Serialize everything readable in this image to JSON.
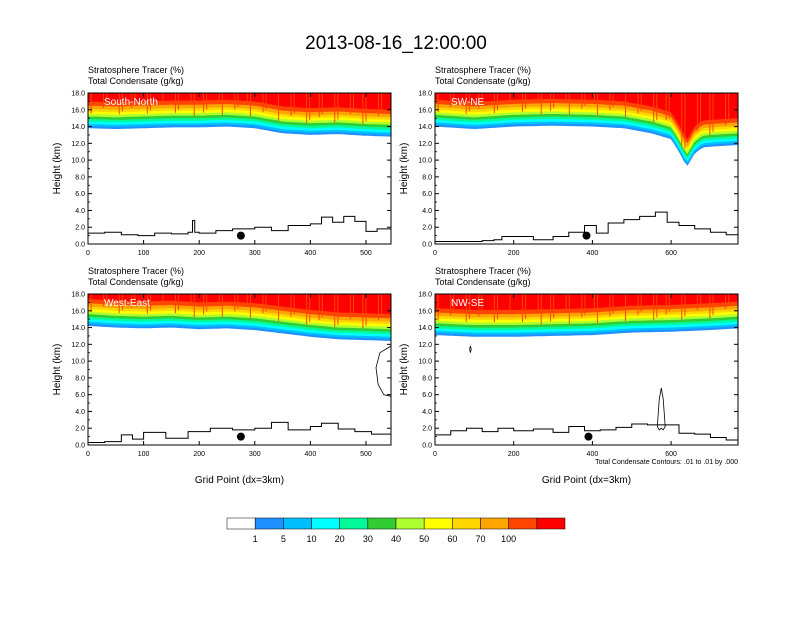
{
  "figure_title": "2013-08-16_12:00:00",
  "colors": {
    "levels": [
      "#ffffff",
      "#1e90ff",
      "#00bfff",
      "#00ffff",
      "#00fa9a",
      "#32cd32",
      "#adff2f",
      "#ffff00",
      "#ffd700",
      "#ffa500",
      "#ff4500",
      "#ff0000"
    ]
  },
  "colorbar": {
    "labels": [
      "1",
      "5",
      "10",
      "20",
      "30",
      "40",
      "50",
      "60",
      "70",
      "100"
    ]
  },
  "contour_note": "Total Condensate Contours: .01 to .01 by .000",
  "chart_data": [
    {
      "type": "heatmap",
      "panel_label": "South-North",
      "title": "Stratosphere Tracer   (%)",
      "subtitle": "Total Condensate   (g/kg)",
      "ylabel": "Height (km)",
      "xlabel": "",
      "xlim": [
        0,
        545
      ],
      "ylim": [
        0,
        18
      ],
      "x_ticks": [
        "0",
        "100",
        "200",
        "300",
        "400",
        "500"
      ],
      "x_tick_values": [
        0,
        100,
        200,
        300,
        400,
        500
      ],
      "y_ticks": [
        "0.0",
        "2.0",
        "4.0",
        "6.0",
        "8.0",
        "10.0",
        "12.0",
        "14.0",
        "16.0",
        "18.0"
      ],
      "tropopause_km": {
        "x": [
          0,
          50,
          100,
          150,
          200,
          250,
          300,
          350,
          400,
          450,
          500,
          545
        ],
        "y": [
          13.8,
          13.7,
          13.8,
          13.9,
          13.9,
          14.0,
          13.8,
          13.2,
          13.0,
          13.1,
          12.9,
          12.8
        ]
      },
      "terrain_km": {
        "x": [
          0,
          30,
          60,
          90,
          120,
          150,
          180,
          188,
          192,
          200,
          230,
          260,
          300,
          330,
          360,
          400,
          420,
          440,
          460,
          480,
          500,
          520,
          545
        ],
        "y": [
          1.3,
          1.4,
          1.1,
          1.0,
          1.3,
          1.2,
          1.4,
          2.8,
          1.4,
          1.3,
          1.6,
          1.8,
          2.0,
          1.6,
          2.2,
          2.4,
          3.2,
          2.6,
          3.3,
          2.7,
          1.5,
          1.8,
          1.8
        ]
      },
      "marker": {
        "x": 275,
        "y": 1.0
      },
      "contours": []
    },
    {
      "type": "heatmap",
      "panel_label": "SW-NE",
      "title": "Stratosphere Tracer   (%)",
      "subtitle": "Total Condensate   (g/kg)",
      "ylabel": "Height (km)",
      "xlabel": "",
      "xlim": [
        0,
        770
      ],
      "ylim": [
        0,
        18
      ],
      "x_ticks": [
        "0",
        "200",
        "400",
        "600"
      ],
      "x_tick_values": [
        0,
        200,
        400,
        600
      ],
      "y_ticks": [
        "0.0",
        "2.0",
        "4.0",
        "6.0",
        "8.0",
        "10.0",
        "12.0",
        "14.0",
        "16.0",
        "18.0"
      ],
      "tropopause_km": {
        "x": [
          0,
          100,
          200,
          300,
          400,
          480,
          550,
          600,
          620,
          640,
          660,
          680,
          700,
          770
        ],
        "y": [
          14.0,
          13.7,
          14.0,
          14.1,
          14.0,
          13.8,
          13.2,
          12.5,
          11.0,
          9.2,
          10.8,
          11.5,
          11.6,
          11.8
        ]
      },
      "terrain_km": {
        "x": [
          0,
          60,
          120,
          150,
          170,
          250,
          300,
          340,
          380,
          410,
          440,
          480,
          520,
          560,
          590,
          620,
          660,
          700,
          740,
          770
        ],
        "y": [
          0.3,
          0.3,
          0.4,
          0.5,
          0.9,
          0.5,
          0.9,
          1.4,
          2.2,
          1.3,
          2.5,
          2.9,
          3.3,
          3.8,
          2.6,
          2.2,
          1.8,
          1.4,
          1.1,
          1.0
        ]
      },
      "marker": {
        "x": 385,
        "y": 1.0
      },
      "contours": []
    },
    {
      "type": "heatmap",
      "panel_label": "West-East",
      "title": "Stratosphere Tracer   (%)",
      "subtitle": "Total Condensate   (g/kg)",
      "ylabel": "Height (km)",
      "xlabel": "Grid Point (dx=3km)",
      "xlim": [
        0,
        545
      ],
      "ylim": [
        0,
        18
      ],
      "x_ticks": [
        "0",
        "100",
        "200",
        "300",
        "400",
        "500"
      ],
      "x_tick_values": [
        0,
        100,
        200,
        300,
        400,
        500
      ],
      "y_ticks": [
        "0.0",
        "2.0",
        "4.0",
        "6.0",
        "8.0",
        "10.0",
        "12.0",
        "14.0",
        "16.0",
        "18.0"
      ],
      "tropopause_km": {
        "x": [
          0,
          50,
          100,
          150,
          200,
          250,
          300,
          350,
          400,
          450,
          500,
          545
        ],
        "y": [
          14.2,
          14.0,
          13.9,
          14.0,
          13.8,
          13.9,
          13.7,
          13.3,
          12.9,
          12.6,
          12.5,
          12.4
        ]
      },
      "terrain_km": {
        "x": [
          0,
          30,
          60,
          80,
          100,
          140,
          180,
          220,
          260,
          300,
          330,
          360,
          400,
          420,
          450,
          480,
          510,
          545
        ],
        "y": [
          0.3,
          0.4,
          1.2,
          0.7,
          1.5,
          0.8,
          1.6,
          2.0,
          1.8,
          2.0,
          2.7,
          1.8,
          2.2,
          2.6,
          1.9,
          1.6,
          1.3,
          1.2
        ]
      },
      "marker": {
        "x": 275,
        "y": 1.0
      },
      "contours": [
        {
          "x": [
            545,
            525,
            518,
            522,
            532,
            545
          ],
          "y": [
            11.8,
            11.0,
            9.2,
            7.2,
            6.0,
            5.8
          ]
        }
      ]
    },
    {
      "type": "heatmap",
      "panel_label": "NW-SE",
      "title": "Stratosphere Tracer   (%)",
      "subtitle": "Total Condensate   (g/kg)",
      "ylabel": "Height (km)",
      "xlabel": "Grid Point (dx=3km)",
      "xlim": [
        0,
        770
      ],
      "ylim": [
        0,
        18
      ],
      "x_ticks": [
        "0",
        "200",
        "400",
        "600"
      ],
      "x_tick_values": [
        0,
        200,
        400,
        600
      ],
      "y_ticks": [
        "0.0",
        "2.0",
        "4.0",
        "6.0",
        "8.0",
        "10.0",
        "12.0",
        "14.0",
        "16.0",
        "18.0"
      ],
      "tropopause_km": {
        "x": [
          0,
          100,
          200,
          300,
          400,
          500,
          600,
          700,
          770
        ],
        "y": [
          13.1,
          12.9,
          12.9,
          13.0,
          13.1,
          13.4,
          13.5,
          13.7,
          13.9
        ]
      },
      "terrain_km": {
        "x": [
          0,
          40,
          80,
          120,
          160,
          200,
          250,
          300,
          340,
          380,
          420,
          460,
          500,
          540,
          580,
          620,
          660,
          700,
          740,
          770
        ],
        "y": [
          1.2,
          1.7,
          2.0,
          1.6,
          2.0,
          1.7,
          1.9,
          1.5,
          2.2,
          1.7,
          1.8,
          2.1,
          2.5,
          2.4,
          2.4,
          1.4,
          1.3,
          0.9,
          0.6,
          0.4
        ]
      },
      "marker": {
        "x": 390,
        "y": 1.0
      },
      "contours": [
        {
          "x": [
            565,
            570,
            575,
            580,
            585,
            580,
            575,
            570,
            565
          ],
          "y": [
            2.2,
            5.5,
            6.8,
            5.5,
            2.2,
            1.8,
            2.0,
            1.8,
            2.2
          ]
        },
        {
          "x": [
            88,
            90,
            92,
            90,
            88
          ],
          "y": [
            11.4,
            11.8,
            11.4,
            11.0,
            11.4
          ]
        }
      ]
    }
  ]
}
